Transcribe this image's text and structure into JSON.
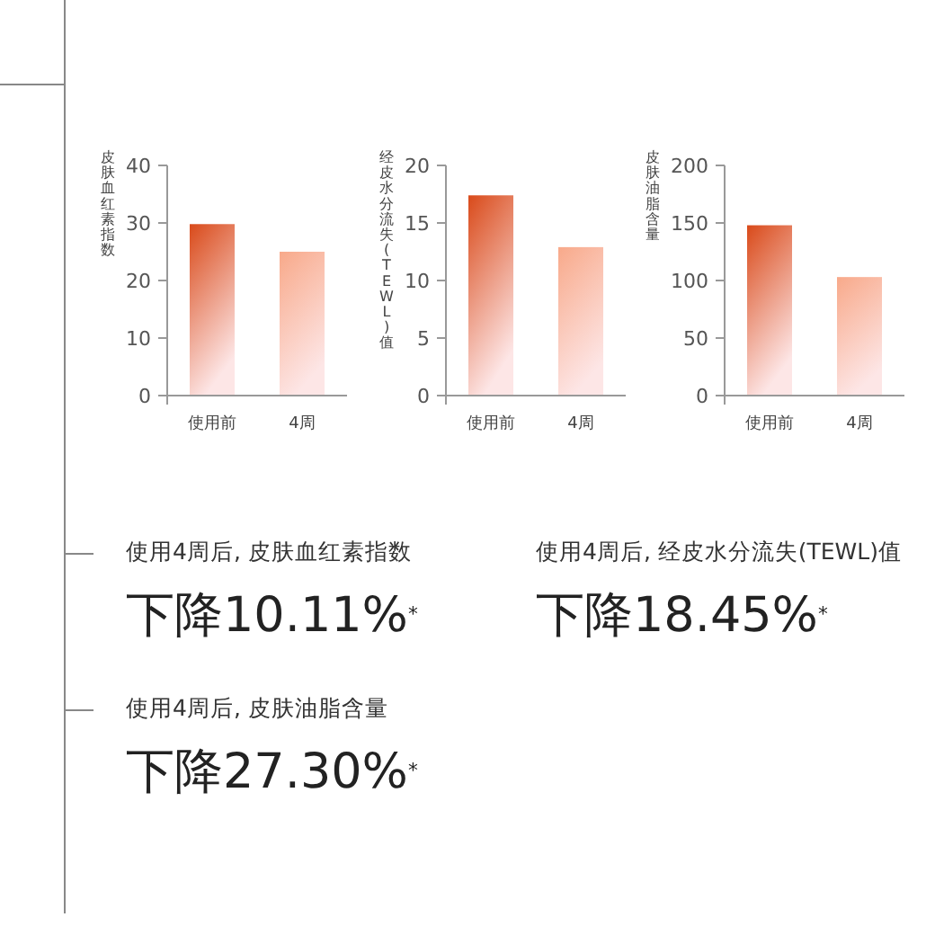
{
  "chart_data": [
    {
      "type": "bar",
      "ylabel": "皮肤血红素指数",
      "categories": [
        "使用前",
        "4周"
      ],
      "values": [
        29.8,
        25
      ],
      "colors": [
        "#d94a1a",
        "#f8a98a"
      ],
      "ylim": [
        0,
        40
      ],
      "yticks": [
        0,
        10,
        20,
        30,
        40
      ]
    },
    {
      "type": "bar",
      "ylabel": "经皮水分流失(TEWL)值",
      "categories": [
        "使用前",
        "4周"
      ],
      "values": [
        17.4,
        12.9
      ],
      "colors": [
        "#d94a1a",
        "#f8a98a"
      ],
      "ylim": [
        0,
        20
      ],
      "yticks": [
        0,
        5,
        10,
        15,
        20
      ]
    },
    {
      "type": "bar",
      "ylabel": "皮肤油脂含量",
      "categories": [
        "使用前",
        "4周"
      ],
      "values": [
        148,
        103
      ],
      "colors": [
        "#d94a1a",
        "#f8a98a"
      ],
      "ylim": [
        0,
        200
      ],
      "yticks": [
        0,
        50,
        100,
        150,
        200
      ]
    },
    {
      "type": "other",
      "annotations": [
        "使用4周后, 皮肤血红素指数",
        "下降10.11%$^{*}$",
        "使用4周后, 经皮水分流失(TEWL)值",
        "下降18.45%$^{*}$",
        "使用4周后, 皮肤油脂含量",
        "下降27.30%$^{*}$"
      ]
    }
  ]
}
